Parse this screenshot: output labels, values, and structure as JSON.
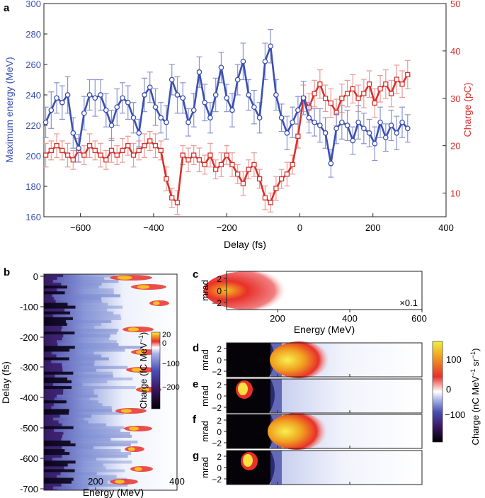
{
  "colors": {
    "blue": "#3a4fb0",
    "blue_err": "#8a93d2",
    "red": "#d8302b",
    "red_err": "#ec9a94",
    "axis": "#222222"
  },
  "panel_a": {
    "label": "a",
    "xlabel": "Delay (fs)",
    "ylabel_left": "Maximum energy (MeV)",
    "ylabel_right": "Charge (pC)",
    "xlim": [
      -700,
      400
    ],
    "ylim_left": [
      160,
      300
    ],
    "ylim_right": [
      5,
      50
    ],
    "xticks": [
      "-600",
      "-400",
      "-200",
      "0",
      "200",
      "400"
    ],
    "xtick_values": [
      -600,
      -400,
      -200,
      0,
      200,
      400
    ],
    "yticks_left": [
      "160",
      "180",
      "200",
      "220",
      "240",
      "260",
      "280",
      "300"
    ],
    "ytick_left_values": [
      160,
      180,
      200,
      220,
      240,
      260,
      280,
      300
    ],
    "yticks_right": [
      "10",
      "20",
      "30",
      "40",
      "50"
    ],
    "ytick_right_values": [
      10,
      20,
      30,
      40,
      50
    ]
  },
  "chart_data": [
    {
      "type": "line",
      "title": "a",
      "xlabel": "Delay (fs)",
      "xlim": [
        -700,
        400
      ],
      "series": [
        {
          "name": "Maximum energy (MeV)",
          "axis": "left",
          "marker": "circle",
          "x": [
            -695,
            -680,
            -665,
            -650,
            -635,
            -620,
            -605,
            -590,
            -575,
            -560,
            -545,
            -530,
            -515,
            -500,
            -485,
            -470,
            -455,
            -440,
            -425,
            -410,
            -395,
            -380,
            -365,
            -350,
            -335,
            -320,
            -305,
            -290,
            -275,
            -260,
            -245,
            -230,
            -215,
            -200,
            -185,
            -170,
            -155,
            -140,
            -125,
            -110,
            -95,
            -80,
            -65,
            -50,
            -35,
            -20,
            -5,
            10,
            25,
            40,
            55,
            70,
            85,
            100,
            115,
            130,
            145,
            160,
            175,
            190,
            205,
            220,
            235,
            250,
            265,
            280,
            295
          ],
          "y": [
            222,
            230,
            238,
            235,
            240,
            215,
            205,
            228,
            240,
            238,
            240,
            230,
            220,
            232,
            238,
            235,
            225,
            215,
            240,
            245,
            232,
            225,
            222,
            250,
            240,
            238,
            222,
            230,
            255,
            235,
            225,
            240,
            258,
            238,
            230,
            250,
            262,
            240,
            232,
            225,
            262,
            272,
            240,
            225,
            215,
            222,
            230,
            238,
            225,
            222,
            220,
            215,
            195,
            218,
            222,
            220,
            210,
            222,
            218,
            215,
            208,
            222,
            212,
            220,
            215,
            222,
            218
          ],
          "err": [
            10,
            12,
            10,
            11,
            12,
            10,
            9,
            11,
            10,
            12,
            10,
            11,
            10,
            12,
            10,
            11,
            10,
            9,
            11,
            10,
            12,
            10,
            11,
            10,
            12,
            10,
            9,
            11,
            10,
            12,
            10,
            11,
            10,
            9,
            11,
            10,
            12,
            10,
            11,
            10,
            12,
            11,
            10,
            9,
            11,
            10,
            9,
            11,
            10,
            9,
            11,
            10,
            9,
            10,
            11,
            10,
            9,
            11,
            10,
            9,
            11,
            10,
            9,
            10,
            11,
            10,
            9
          ]
        },
        {
          "name": "Charge (pC)",
          "axis": "right",
          "marker": "square",
          "x": [
            -695,
            -680,
            -665,
            -650,
            -635,
            -620,
            -605,
            -590,
            -575,
            -560,
            -545,
            -530,
            -515,
            -500,
            -485,
            -470,
            -455,
            -440,
            -425,
            -410,
            -395,
            -380,
            -365,
            -350,
            -335,
            -320,
            -305,
            -290,
            -275,
            -260,
            -245,
            -230,
            -215,
            -200,
            -185,
            -170,
            -155,
            -140,
            -125,
            -110,
            -95,
            -80,
            -65,
            -50,
            -35,
            -20,
            -5,
            10,
            25,
            40,
            55,
            70,
            85,
            100,
            115,
            130,
            145,
            160,
            175,
            190,
            205,
            220,
            235,
            250,
            265,
            280,
            295
          ],
          "y": [
            18,
            19,
            20,
            19,
            18,
            17,
            19,
            18,
            20,
            19,
            18,
            17,
            19,
            18,
            19,
            20,
            18,
            19,
            20,
            21,
            20,
            19,
            13,
            9,
            8,
            18,
            17,
            18,
            17,
            16,
            18,
            15,
            16,
            18,
            16,
            14,
            12,
            15,
            16,
            13,
            9,
            8,
            11,
            13,
            14,
            16,
            22,
            30,
            28,
            31,
            33,
            30,
            29,
            27,
            30,
            31,
            32,
            30,
            31,
            33,
            29,
            32,
            33,
            31,
            34,
            33,
            35
          ],
          "err": [
            2.5,
            2,
            2.5,
            2,
            2.5,
            2,
            2.5,
            2,
            2.5,
            2,
            2.5,
            2,
            2.5,
            2,
            2.5,
            2,
            2.5,
            2,
            2.5,
            2,
            2.5,
            2,
            2.5,
            2,
            2.5,
            2,
            2.5,
            2,
            2.5,
            2,
            2.5,
            2,
            2.5,
            2,
            2.5,
            2,
            2.5,
            2,
            2.5,
            2,
            2.5,
            2,
            2.5,
            2,
            2.5,
            2,
            2.5,
            2.8,
            3,
            2.8,
            3,
            2.8,
            3,
            2.8,
            3,
            2.8,
            3,
            2.8,
            3,
            2.8,
            3,
            2.8,
            3,
            2.8,
            3,
            2.8,
            3
          ]
        }
      ]
    },
    {
      "type": "heatmap",
      "title": "b",
      "xlabel": "Energy (MeV)",
      "ylabel": "Delay (fs)",
      "xlim": [
        80,
        400
      ],
      "ylim": [
        -700,
        20
      ],
      "colorbar_label": "Charge (fC MeV⁻¹)",
      "colorbar_ticks": [
        20,
        0,
        -100,
        -200
      ]
    },
    {
      "type": "heatmap",
      "title": "c–g",
      "xlabel": "Energy (MeV)",
      "ylabel": "mrad",
      "xlim": [
        60,
        600
      ],
      "colorbar_label": "Charge (nC MeV⁻¹ sr⁻¹)",
      "colorbar_ticks": [
        100,
        0,
        -100
      ],
      "note": "×0.1"
    }
  ],
  "panel_b": {
    "label": "b",
    "xlabel": "Energy (MeV)",
    "ylabel": "Delay (fs)",
    "xticks": [
      "200",
      "400"
    ],
    "yticks": [
      "0",
      "-100",
      "-200",
      "-300",
      "-400",
      "-500",
      "-600",
      "-700"
    ],
    "colorbar_label": "Charge (fC MeV",
    "colorbar_label_sup": "−1",
    "colorbar_label_end": ")",
    "colorbar_ticks": [
      "20",
      "0",
      "−100",
      "−200"
    ]
  },
  "panel_cg": {
    "labels": [
      "c",
      "d",
      "e",
      "f",
      "g"
    ],
    "ylabel": "mrad",
    "yticks": [
      "2",
      "0",
      "−2"
    ],
    "xlabel": "Energy (MeV)",
    "xticks": [
      "200",
      "400",
      "600"
    ],
    "scale_note": "×0.1",
    "colorbar_label": "Charge (nC MeV",
    "colorbar_label_sup1": "−1",
    "colorbar_label_mid": " sr",
    "colorbar_label_sup2": "−1",
    "colorbar_label_end": ")",
    "colorbar_ticks": [
      "100",
      "0",
      "−100"
    ]
  }
}
